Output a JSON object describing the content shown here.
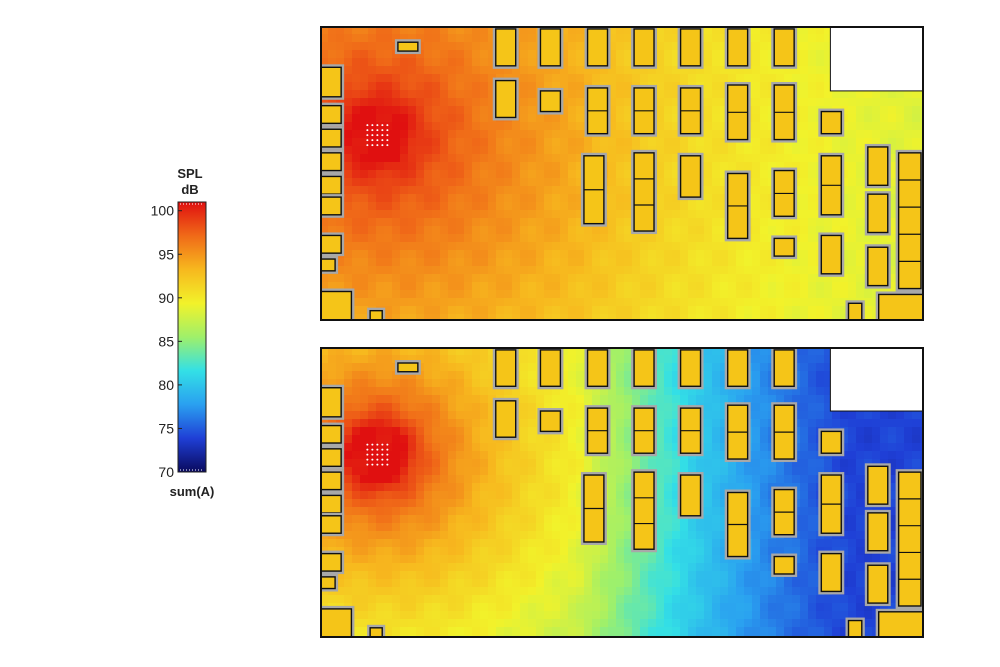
{
  "colorbar": {
    "title_line1": "SPL",
    "title_line2": "dB",
    "footer": "sum(A)",
    "ticks": [
      "100",
      "95",
      "90",
      "85",
      "80",
      "75",
      "70"
    ],
    "range": [
      70,
      101
    ],
    "colors": [
      "#0a0a5e",
      "#1f3fd6",
      "#2aa0f0",
      "#33e0e6",
      "#9ff06a",
      "#f2f22a",
      "#f7b81e",
      "#f06a18",
      "#e01010"
    ]
  },
  "chart_data": [
    {
      "type": "heatmap",
      "name": "Top map",
      "title": "",
      "xlabel": "",
      "ylabel": "",
      "zlabel": "SPL dB",
      "zlim": [
        70,
        101
      ],
      "source_level_db": 101,
      "far_field_level_db": 88,
      "shadow_level_db": 89,
      "grid": false
    },
    {
      "type": "heatmap",
      "name": "Bottom map",
      "title": "",
      "xlabel": "",
      "ylabel": "",
      "zlabel": "SPL dB",
      "zlim": [
        70,
        101
      ],
      "source_level_db": 101,
      "far_field_level_db": 80,
      "shadow_level_db": 74,
      "grid": false
    }
  ]
}
